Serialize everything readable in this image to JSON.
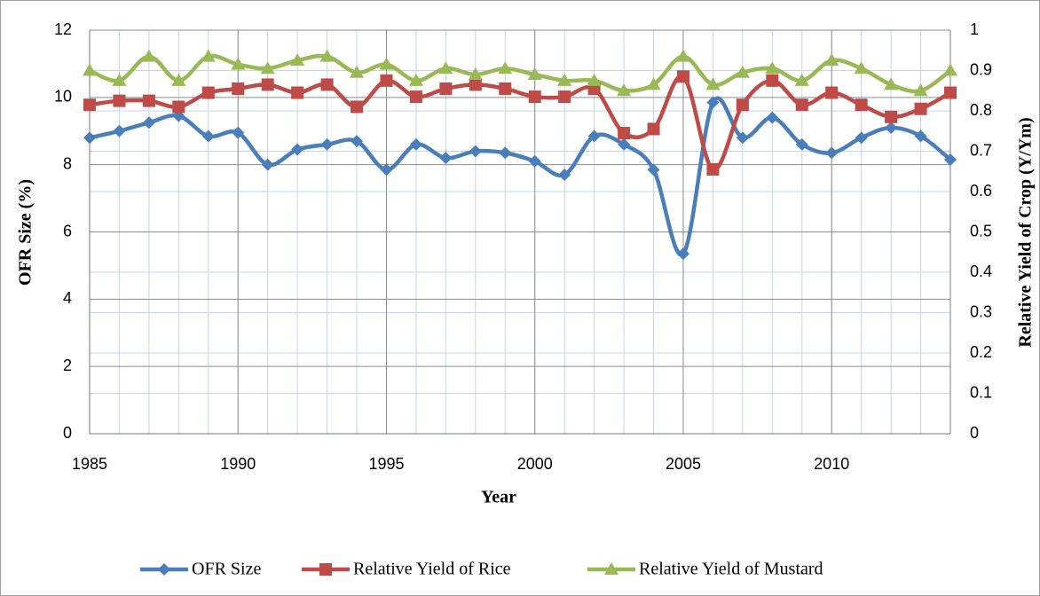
{
  "chart_data": {
    "type": "line",
    "xlabel": "Year",
    "ylabel": "OFR Size (%)",
    "y2label": "Relative Yield of Crop (Y/Ym)",
    "x": [
      1985,
      1986,
      1987,
      1988,
      1989,
      1990,
      1991,
      1992,
      1993,
      1994,
      1995,
      1996,
      1997,
      1998,
      1999,
      2000,
      2001,
      2002,
      2003,
      2004,
      2005,
      2006,
      2007,
      2008,
      2009,
      2010,
      2011,
      2012,
      2013,
      2014
    ],
    "series": [
      {
        "name": "OFR Size",
        "color": "#4a7ebb",
        "marker": "diamond",
        "values": [
          8.8,
          9.0,
          9.25,
          9.45,
          8.85,
          8.95,
          8.0,
          8.45,
          8.6,
          8.7,
          7.85,
          8.6,
          8.2,
          8.4,
          8.35,
          8.1,
          7.7,
          8.85,
          8.6,
          7.85,
          5.35,
          9.85,
          8.8,
          9.4,
          8.6,
          8.35,
          8.8,
          9.1,
          8.85,
          8.15
        ]
      },
      {
        "name": "Relative Yield of Rice",
        "color": "#be4b48",
        "marker": "square",
        "axis": "y2",
        "values": [
          0.815,
          0.825,
          0.825,
          0.81,
          0.845,
          0.855,
          0.865,
          0.845,
          0.865,
          0.81,
          0.875,
          0.835,
          0.855,
          0.865,
          0.855,
          0.835,
          0.835,
          0.855,
          0.745,
          0.755,
          0.885,
          0.655,
          0.815,
          0.875,
          0.815,
          0.845,
          0.815,
          0.785,
          0.805,
          0.845
        ]
      },
      {
        "name": "Relative Yield of Mustard",
        "color": "#98b954",
        "marker": "triangle",
        "axis": "y2",
        "values": [
          0.9,
          0.875,
          0.935,
          0.875,
          0.935,
          0.915,
          0.905,
          0.925,
          0.935,
          0.895,
          0.915,
          0.875,
          0.905,
          0.89,
          0.905,
          0.89,
          0.875,
          0.875,
          0.85,
          0.865,
          0.935,
          0.865,
          0.895,
          0.905,
          0.875,
          0.925,
          0.905,
          0.865,
          0.85,
          0.9
        ]
      }
    ],
    "xlim": [
      1985,
      2014
    ],
    "xticks": [
      1985,
      1990,
      1995,
      2000,
      2005,
      2010
    ],
    "ylim": [
      0,
      12
    ],
    "yticks": [
      0,
      2,
      4,
      6,
      8,
      10,
      12
    ],
    "y2lim": [
      0,
      1
    ],
    "y2ticks": [
      0,
      0.1,
      0.2,
      0.3,
      0.4,
      0.5,
      0.6,
      0.7,
      0.8,
      0.9,
      1
    ],
    "grid": true,
    "legend": "bottom"
  }
}
